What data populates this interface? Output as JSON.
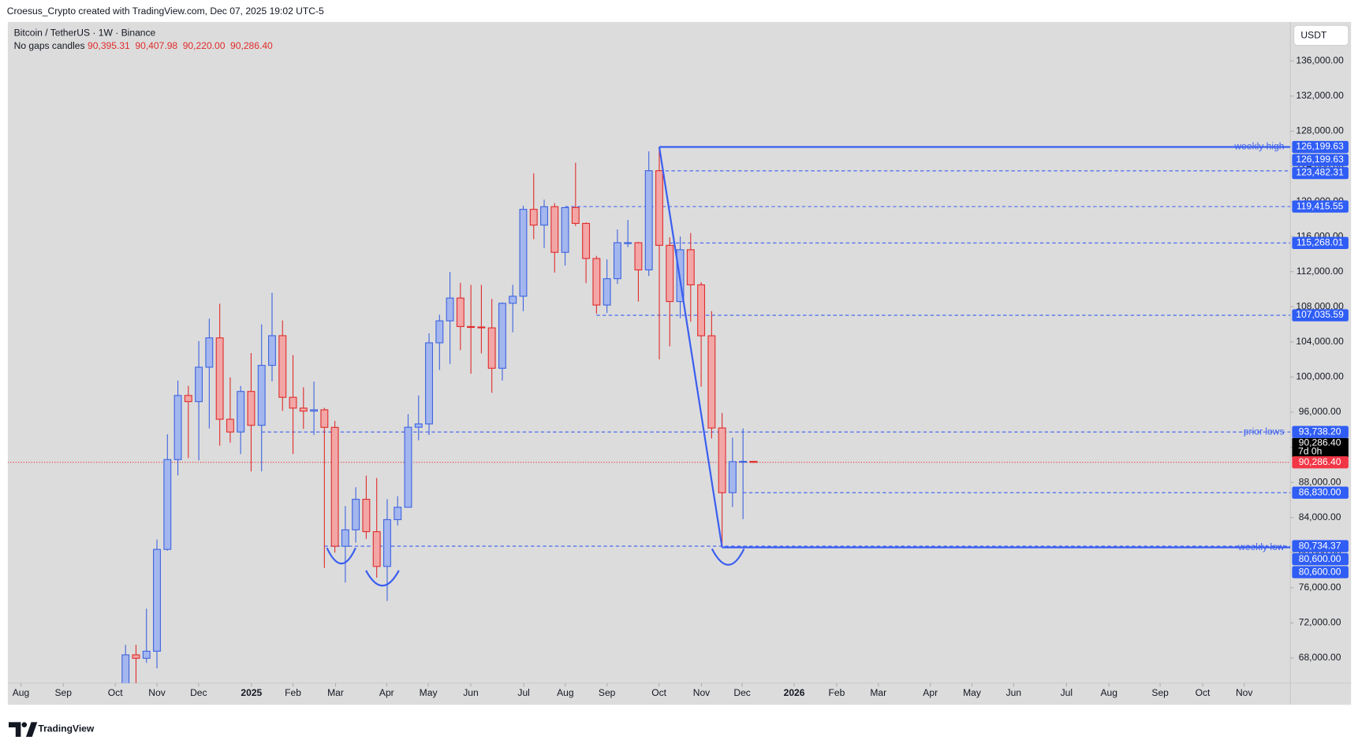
{
  "chart_data": {
    "type": "candlestick",
    "header": "Croesus_Crypto created with TradingView.com, Dec 07, 2025 19:02 UTC-5",
    "symbol": "Bitcoin / TetherUS · 1W · Binance",
    "legend_label": "No gaps candles",
    "legend_ohlc": [
      {
        "value": 90395.31,
        "label": "90,395.31"
      },
      {
        "value": 90407.98,
        "label": "90,407.98"
      },
      {
        "value": 90220.0,
        "label": "90,220.00"
      },
      {
        "value": 90286.4,
        "label": "90,286.40"
      }
    ],
    "currency": "USDT",
    "watermark": "TradingView",
    "up_color": "#3d63e0",
    "up_fill": "#a3b6ee",
    "down_color": "#e02b2b",
    "down_fill": "#f2a6a6",
    "line_color": "#3a5ef0",
    "xlim": [
      -14.25,
      108.3
    ],
    "xticks": [
      {
        "value": -13.0,
        "label": "Aug"
      },
      {
        "value": -8.95,
        "label": "Sep"
      },
      {
        "value": -3.98,
        "label": "Oct"
      },
      {
        "value": 0,
        "label": "Nov"
      },
      {
        "value": 3.98,
        "label": "Dec"
      },
      {
        "value": 9.03,
        "label": "2025"
      },
      {
        "value": 13.0,
        "label": "Feb"
      },
      {
        "value": 17.07,
        "label": "Mar"
      },
      {
        "value": 21.95,
        "label": "Apr"
      },
      {
        "value": 25.93,
        "label": "May"
      },
      {
        "value": 29.99,
        "label": "Jun"
      },
      {
        "value": 35.05,
        "label": "Jul"
      },
      {
        "value": 39.02,
        "label": "Aug"
      },
      {
        "value": 43.0,
        "label": "Sep"
      },
      {
        "value": 47.97,
        "label": "Oct"
      },
      {
        "value": 52.03,
        "label": "Nov"
      },
      {
        "value": 55.92,
        "label": "Dec"
      },
      {
        "value": 60.89,
        "label": "2026"
      },
      {
        "value": 64.95,
        "label": "Feb"
      },
      {
        "value": 68.93,
        "label": "Mar"
      },
      {
        "value": 73.9,
        "label": "Apr"
      },
      {
        "value": 77.88,
        "label": "May"
      },
      {
        "value": 81.86,
        "label": "Jun"
      },
      {
        "value": 86.91,
        "label": "Jul"
      },
      {
        "value": 90.97,
        "label": "Aug"
      },
      {
        "value": 95.86,
        "label": "Sep"
      },
      {
        "value": 99.92,
        "label": "Oct"
      },
      {
        "value": 103.89,
        "label": "Nov"
      }
    ],
    "ylim": [
      65140,
      140440
    ],
    "yticks": [
      {
        "value": 68000,
        "label": "68,000.00"
      },
      {
        "value": 72000,
        "label": "72,000.00"
      },
      {
        "value": 76000,
        "label": "76,000.00"
      },
      {
        "value": 80000,
        "label": "80,000.00"
      },
      {
        "value": 84000,
        "label": "84,000.00"
      },
      {
        "value": 88000,
        "label": "88,000.00"
      },
      {
        "value": 92000,
        "label": "92,000.00"
      },
      {
        "value": 96000,
        "label": "96,000.00"
      },
      {
        "value": 100000,
        "label": "100,000.00"
      },
      {
        "value": 104000,
        "label": "104,000.00"
      },
      {
        "value": 108000,
        "label": "108,000.00"
      },
      {
        "value": 112000,
        "label": "112,000.00"
      },
      {
        "value": 116000,
        "label": "116,000.00"
      },
      {
        "value": 120000,
        "label": "120,000.00"
      },
      {
        "value": 124000,
        "label": "124,000.00"
      },
      {
        "value": 128000,
        "label": "128,000.00"
      },
      {
        "value": 132000,
        "label": "132,000.00"
      },
      {
        "value": 136000,
        "label": "136,000.00"
      }
    ],
    "x": [
      -3,
      -2,
      -1,
      0,
      1,
      2,
      3,
      4,
      5,
      6,
      7,
      8,
      9,
      10,
      11,
      12,
      13,
      14,
      15,
      16,
      17,
      18,
      19,
      20,
      21,
      22,
      23,
      24,
      25,
      26,
      27,
      28,
      29,
      30,
      31,
      32,
      33,
      34,
      35,
      36,
      37,
      38,
      39,
      40,
      41,
      42,
      43,
      44,
      45,
      46,
      47,
      48,
      49,
      50,
      51,
      52,
      53,
      54,
      55,
      56,
      57
    ],
    "open": [
      62850,
      68360,
      67970,
      68775,
      80370,
      90600,
      97900,
      97200,
      101120,
      104460,
      95190,
      93740,
      98360,
      94500,
      101330,
      104710,
      97690,
      96460,
      96120,
      96270,
      94270,
      80730,
      82600,
      86080,
      82390,
      78430,
      83760,
      85170,
      94280,
      94660,
      103900,
      106400,
      109000,
      105750,
      105700,
      105600,
      101000,
      108400,
      109200,
      119100,
      117300,
      119400,
      114200,
      119300,
      117500,
      113500,
      108200,
      111200,
      115300,
      115300,
      112200,
      123500,
      115000,
      108600,
      114500,
      110500,
      104700,
      94200,
      86830,
      90360,
      90395.31
    ],
    "high": [
      69500,
      69500,
      73620,
      81500,
      93480,
      99590,
      99000,
      104090,
      106650,
      108350,
      99960,
      98980,
      102730,
      106000,
      109590,
      106450,
      102500,
      98830,
      99480,
      96500,
      95000,
      85300,
      87450,
      88770,
      88500,
      86100,
      86430,
      95760,
      97900,
      104980,
      107100,
      111980,
      110730,
      110500,
      110500,
      108900,
      108500,
      110500,
      119500,
      123200,
      120200,
      119800,
      119300,
      124400,
      117600,
      113800,
      113400,
      116800,
      117900,
      115400,
      125700,
      126199.63,
      115900,
      116000,
      116400,
      110800,
      107500,
      95900,
      93100,
      94150,
      90407.98
    ],
    "low": [
      62450,
      65070,
      67450,
      66835,
      80220,
      88800,
      90770,
      90500,
      94150,
      92180,
      92520,
      91220,
      89250,
      89260,
      99500,
      96150,
      91230,
      94090,
      93390,
      78250,
      80000,
      76600,
      81150,
      81560,
      77150,
      74500,
      83100,
      85140,
      92800,
      93400,
      100800,
      101500,
      103070,
      100370,
      102700,
      98200,
      99600,
      105100,
      107500,
      115700,
      114700,
      111900,
      112700,
      117200,
      110700,
      107200,
      107300,
      110600,
      114800,
      108600,
      111500,
      102000,
      103500,
      106700,
      106300,
      98900,
      93000,
      80600,
      85200,
      83820,
      90220
    ],
    "close": [
      68360,
      67970,
      68775,
      80370,
      90600,
      97900,
      97200,
      101120,
      104460,
      95190,
      93740,
      98360,
      94500,
      101330,
      104710,
      97690,
      96460,
      96120,
      96270,
      94270,
      80730,
      82600,
      86080,
      82390,
      78430,
      83760,
      85170,
      94280,
      94660,
      103900,
      106400,
      109000,
      105750,
      105700,
      105600,
      101000,
      108400,
      109200,
      119100,
      117300,
      119400,
      114200,
      119300,
      117500,
      113500,
      108200,
      111200,
      115300,
      115300,
      112200,
      123500,
      115000,
      108600,
      114500,
      110500,
      104700,
      94200,
      86830,
      90360,
      90395.31,
      90286.4
    ],
    "levels": [
      {
        "value": 126199.63,
        "x": 48,
        "style": "solid",
        "text": "weekly high"
      },
      {
        "value": 123482.31,
        "x": 48,
        "style": "dashed"
      },
      {
        "value": 119415.55,
        "x": 39,
        "style": "dashed"
      },
      {
        "value": 115268.01,
        "x": 49,
        "style": "dashed"
      },
      {
        "value": 107035.59,
        "x": 42,
        "style": "dashed"
      },
      {
        "value": 93738.2,
        "x": 10,
        "style": "dashed",
        "text": "prior lows"
      },
      {
        "value": 86830,
        "x": 56,
        "style": "dashed"
      },
      {
        "value": 80734.37,
        "x": 16,
        "style": "dashed"
      },
      {
        "value": 80600,
        "x": 54,
        "style": "solid",
        "text": "weekly low"
      }
    ],
    "trend_line": {
      "x": [
        48,
        54
      ],
      "values": [
        126199.63,
        80600
      ]
    },
    "price_labels": [
      {
        "value": 126199.63,
        "label": "126,199.63"
      },
      {
        "value": 126199.63,
        "label": "126,199.63"
      },
      {
        "value": 123482.31,
        "label": "123,482.31"
      },
      {
        "value": 119415.55,
        "label": "119,415.55"
      },
      {
        "value": 115268.01,
        "label": "115,268.01"
      },
      {
        "value": 107035.59,
        "label": "107,035.59"
      },
      {
        "value": 93738.2,
        "label": "93,738.20"
      },
      {
        "value": 86830,
        "label": "86,830.00"
      },
      {
        "value": 80734.37,
        "label": "80,734.37"
      },
      {
        "value": 80600,
        "label": "80,600.00"
      },
      {
        "value": 80600,
        "label": "80,600.00"
      }
    ],
    "last_price": {
      "value": 90286.4,
      "label": "90,286.40"
    },
    "countdown": "7d 0h"
  }
}
